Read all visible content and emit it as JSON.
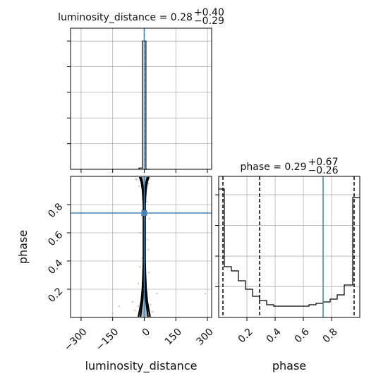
{
  "chart_data": [
    {
      "type": "bar",
      "panel": "luminosity_distance histogram",
      "title": {
        "param": "luminosity_distance",
        "median": "0.28",
        "plus": "+0.40",
        "minus": "−0.29"
      },
      "xlim": [
        -350,
        320
      ],
      "xticks": [
        -300,
        -150,
        0,
        150,
        300
      ],
      "bins": [
        {
          "x0": -25,
          "x1": -8,
          "h": 0.01
        },
        {
          "x0": -8,
          "x1": 8,
          "h": 1.0
        },
        {
          "x0": 8,
          "x1": 25,
          "h": 0.0
        }
      ],
      "ylim": [
        0,
        1.1
      ],
      "quantile_lines": [
        0.28
      ],
      "truth": 0
    },
    {
      "type": "scatter",
      "panel": "phase vs luminosity_distance",
      "xlabel": "luminosity_distance",
      "ylabel": "phase",
      "xlim": [
        -350,
        320
      ],
      "ylim": [
        0.0,
        1.0
      ],
      "xticks": [
        -300,
        -150,
        0,
        150,
        300
      ],
      "xtick_labels": [
        "−300",
        "−150",
        "0",
        "150",
        "300"
      ],
      "yticks": [
        0.2,
        0.4,
        0.6,
        0.8
      ],
      "yticklabels": [
        "0.2",
        "0.4",
        "0.6",
        "0.8"
      ],
      "truth": {
        "x": 0,
        "y": 0.74
      },
      "contour_halfwidths": [
        {
          "y": 0.005,
          "w": [
            18,
            28
          ]
        },
        {
          "y": 0.05,
          "w": [
            14,
            22
          ]
        },
        {
          "y": 0.12,
          "w": [
            8,
            14
          ]
        },
        {
          "y": 0.2,
          "w": [
            5,
            9
          ]
        },
        {
          "y": 0.3,
          "w": [
            3,
            6
          ]
        },
        {
          "y": 0.4,
          "w": [
            2,
            4
          ]
        },
        {
          "y": 0.6,
          "w": [
            2,
            4
          ]
        },
        {
          "y": 0.8,
          "w": [
            2,
            4
          ]
        },
        {
          "y": 0.9,
          "w": [
            4,
            8
          ]
        },
        {
          "y": 0.96,
          "w": [
            9,
            14
          ]
        },
        {
          "y": 0.995,
          "w": [
            15,
            22
          ]
        }
      ]
    },
    {
      "type": "bar",
      "panel": "phase histogram",
      "title": {
        "param": "phase",
        "median": "0.29",
        "plus": "+0.67",
        "minus": "−0.26"
      },
      "xlabel": "phase",
      "xlim": [
        0.0,
        1.0
      ],
      "xticks": [
        0.2,
        0.4,
        0.6,
        0.8
      ],
      "xtick_labels": [
        "0.2",
        "0.4",
        "0.6",
        "0.8"
      ],
      "ylim": [
        0,
        1.0
      ],
      "bins": [
        {
          "x0": 0.0,
          "x1": 0.04,
          "h": 0.91
        },
        {
          "x0": 0.04,
          "x1": 0.09,
          "h": 0.36
        },
        {
          "x0": 0.09,
          "x1": 0.14,
          "h": 0.33
        },
        {
          "x0": 0.14,
          "x1": 0.19,
          "h": 0.26
        },
        {
          "x0": 0.19,
          "x1": 0.24,
          "h": 0.2
        },
        {
          "x0": 0.24,
          "x1": 0.29,
          "h": 0.15
        },
        {
          "x0": 0.29,
          "x1": 0.34,
          "h": 0.12
        },
        {
          "x0": 0.34,
          "x1": 0.39,
          "h": 0.09
        },
        {
          "x0": 0.39,
          "x1": 0.44,
          "h": 0.08
        },
        {
          "x0": 0.44,
          "x1": 0.49,
          "h": 0.08
        },
        {
          "x0": 0.49,
          "x1": 0.54,
          "h": 0.08
        },
        {
          "x0": 0.54,
          "x1": 0.59,
          "h": 0.08
        },
        {
          "x0": 0.59,
          "x1": 0.64,
          "h": 0.08
        },
        {
          "x0": 0.64,
          "x1": 0.69,
          "h": 0.09
        },
        {
          "x0": 0.69,
          "x1": 0.74,
          "h": 0.1
        },
        {
          "x0": 0.74,
          "x1": 0.79,
          "h": 0.11
        },
        {
          "x0": 0.79,
          "x1": 0.84,
          "h": 0.13
        },
        {
          "x0": 0.84,
          "x1": 0.89,
          "h": 0.16
        },
        {
          "x0": 0.89,
          "x1": 0.95,
          "h": 0.23
        },
        {
          "x0": 0.95,
          "x1": 1.0,
          "h": 0.85
        }
      ],
      "quantile_lines": [
        0.03,
        0.29,
        0.96
      ],
      "truth": 0.74
    }
  ]
}
